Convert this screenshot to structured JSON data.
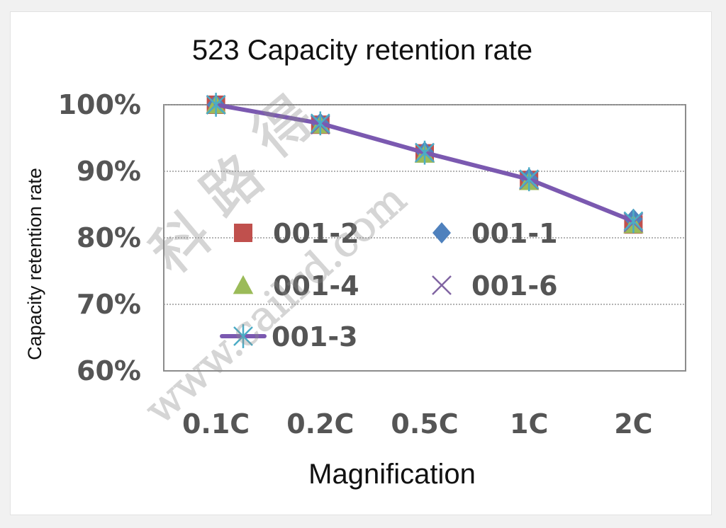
{
  "chart_data": {
    "type": "line",
    "title": "523 Capacity retention rate",
    "xlabel": "Magnification",
    "ylabel": "Capacity retention rate",
    "categories": [
      "0.1C",
      "0.2C",
      "0.5C",
      "1C",
      "2C"
    ],
    "y_ticks": [
      "60%",
      "70%",
      "80%",
      "90%",
      "100%"
    ],
    "ylim": [
      60,
      100
    ],
    "grid": true,
    "legend_position": "inside-left",
    "series": [
      {
        "name": "001-2",
        "marker": "square",
        "color": "#c0504d",
        "line": false,
        "values": [
          100,
          97,
          92.7,
          88.7,
          82.0
        ]
      },
      {
        "name": "001-1",
        "marker": "diamond",
        "color": "#4f81bd",
        "line": false,
        "values": [
          100,
          97.2,
          92.9,
          88.9,
          82.8
        ]
      },
      {
        "name": "001-4",
        "marker": "triangle",
        "color": "#9bbb59",
        "line": false,
        "values": [
          100,
          97,
          92.6,
          88.5,
          82.0
        ]
      },
      {
        "name": "001-6",
        "marker": "x",
        "color": "#8064a2",
        "line": false,
        "values": [
          100,
          97,
          92.8,
          88.7,
          82.3
        ]
      },
      {
        "name": "001-3",
        "marker": "star",
        "color": "#4bacc6",
        "line": true,
        "line_color": "#7b59b0",
        "values": [
          100,
          97.2,
          92.8,
          88.8,
          82.5
        ]
      }
    ]
  },
  "watermark": {
    "chars": [
      "科",
      "路",
      "得"
    ],
    "url": "www.cailrd.com"
  }
}
